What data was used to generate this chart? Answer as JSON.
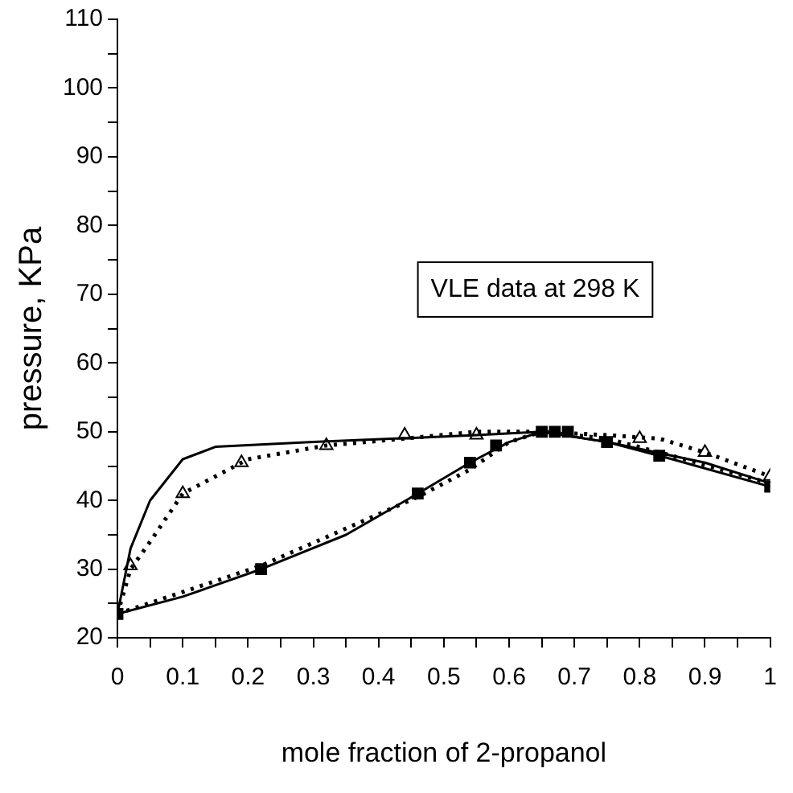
{
  "chart_data": {
    "type": "line",
    "xlabel": "mole fraction of 2-propanol",
    "ylabel": "pressure, KPa",
    "annotations": [
      "VLE data at 298 K"
    ],
    "xlim": [
      0,
      1
    ],
    "ylim": [
      20,
      110
    ],
    "xticks": [
      0,
      {
        "value": 0.05,
        "label": null
      },
      0.1,
      {
        "value": 0.15,
        "label": null
      },
      0.2,
      {
        "value": 0.25,
        "label": null
      },
      0.3,
      {
        "value": 0.35,
        "label": null
      },
      0.4,
      {
        "value": 0.45,
        "label": null
      },
      0.5,
      {
        "value": 0.55,
        "label": null
      },
      0.6,
      {
        "value": 0.65,
        "label": null
      },
      0.7,
      {
        "value": 0.75,
        "label": null
      },
      0.8,
      {
        "value": 0.85,
        "label": null
      },
      0.9,
      {
        "value": 0.95,
        "label": null
      },
      1
    ],
    "yticks": [
      20,
      {
        "value": 25,
        "label": null
      },
      30,
      {
        "value": 35,
        "label": null
      },
      40,
      {
        "value": 45,
        "label": null
      },
      50,
      {
        "value": 55,
        "label": null
      },
      60,
      {
        "value": 65,
        "label": null
      },
      70,
      {
        "value": 75,
        "label": null
      },
      80,
      {
        "value": 85,
        "label": null
      },
      90,
      {
        "value": 95,
        "label": null
      },
      100,
      {
        "value": 105,
        "label": null
      },
      110
    ],
    "grid": false,
    "legend": false,
    "series": [
      {
        "type": "line",
        "color": "#000000",
        "marker": "none",
        "line_style": "solid",
        "x": [
          0,
          0.02,
          0.05,
          0.1,
          0.15,
          0.3,
          0.55,
          0.65,
          0.75,
          0.9,
          1
        ],
        "values": [
          23.5,
          33,
          40,
          46,
          47.8,
          48.5,
          49.5,
          50,
          48.5,
          45.5,
          42.5
        ]
      },
      {
        "type": "line",
        "color": "#000000",
        "marker": "none",
        "line_style": "dotted",
        "x": [
          0,
          0.02,
          0.05,
          0.1,
          0.2,
          0.32,
          0.44,
          0.55,
          0.65,
          0.75,
          0.83,
          0.9,
          1
        ],
        "values": [
          23.5,
          30,
          34,
          41,
          46,
          48,
          49,
          50,
          50,
          49.5,
          49,
          47,
          43.5
        ]
      },
      {
        "type": "line",
        "color": "#000000",
        "marker": "none",
        "line_style": "solid",
        "x": [
          0,
          0.1,
          0.22,
          0.35,
          0.46,
          0.54,
          0.6,
          0.65,
          0.75,
          0.85,
          1
        ],
        "values": [
          23.5,
          26,
          30,
          35,
          41,
          45.5,
          48.5,
          50,
          48.5,
          46,
          42
        ]
      },
      {
        "type": "line",
        "color": "#000000",
        "marker": "none",
        "line_style": "dotted",
        "x": [
          0,
          0.22,
          0.46,
          0.54,
          0.6,
          0.65,
          0.75,
          0.85,
          1
        ],
        "values": [
          23.5,
          30.5,
          40.5,
          44.5,
          48.5,
          50,
          49,
          46.5,
          42.5
        ]
      },
      {
        "type": "scatter",
        "color": "#000000",
        "marker": "square",
        "x": [
          0,
          0.22,
          0.46,
          0.54,
          0.58,
          0.62,
          0.65,
          0.67,
          0.69,
          0.75,
          0.83,
          1
        ],
        "values": [
          23.5,
          30,
          41,
          45.5,
          48,
          null,
          50,
          50,
          50,
          48.5,
          46.5,
          42
        ]
      },
      {
        "type": "scatter",
        "color": "#000000",
        "marker": "triangle",
        "x": [
          0.02,
          0.1,
          0.19,
          0.32,
          0.44,
          0.55,
          0.63,
          0.66,
          0.7,
          0.8,
          0.9,
          1
        ],
        "values": [
          30.5,
          41,
          45.5,
          48,
          49.5,
          49.5,
          null,
          null,
          null,
          49,
          47,
          43.5
        ]
      }
    ]
  }
}
